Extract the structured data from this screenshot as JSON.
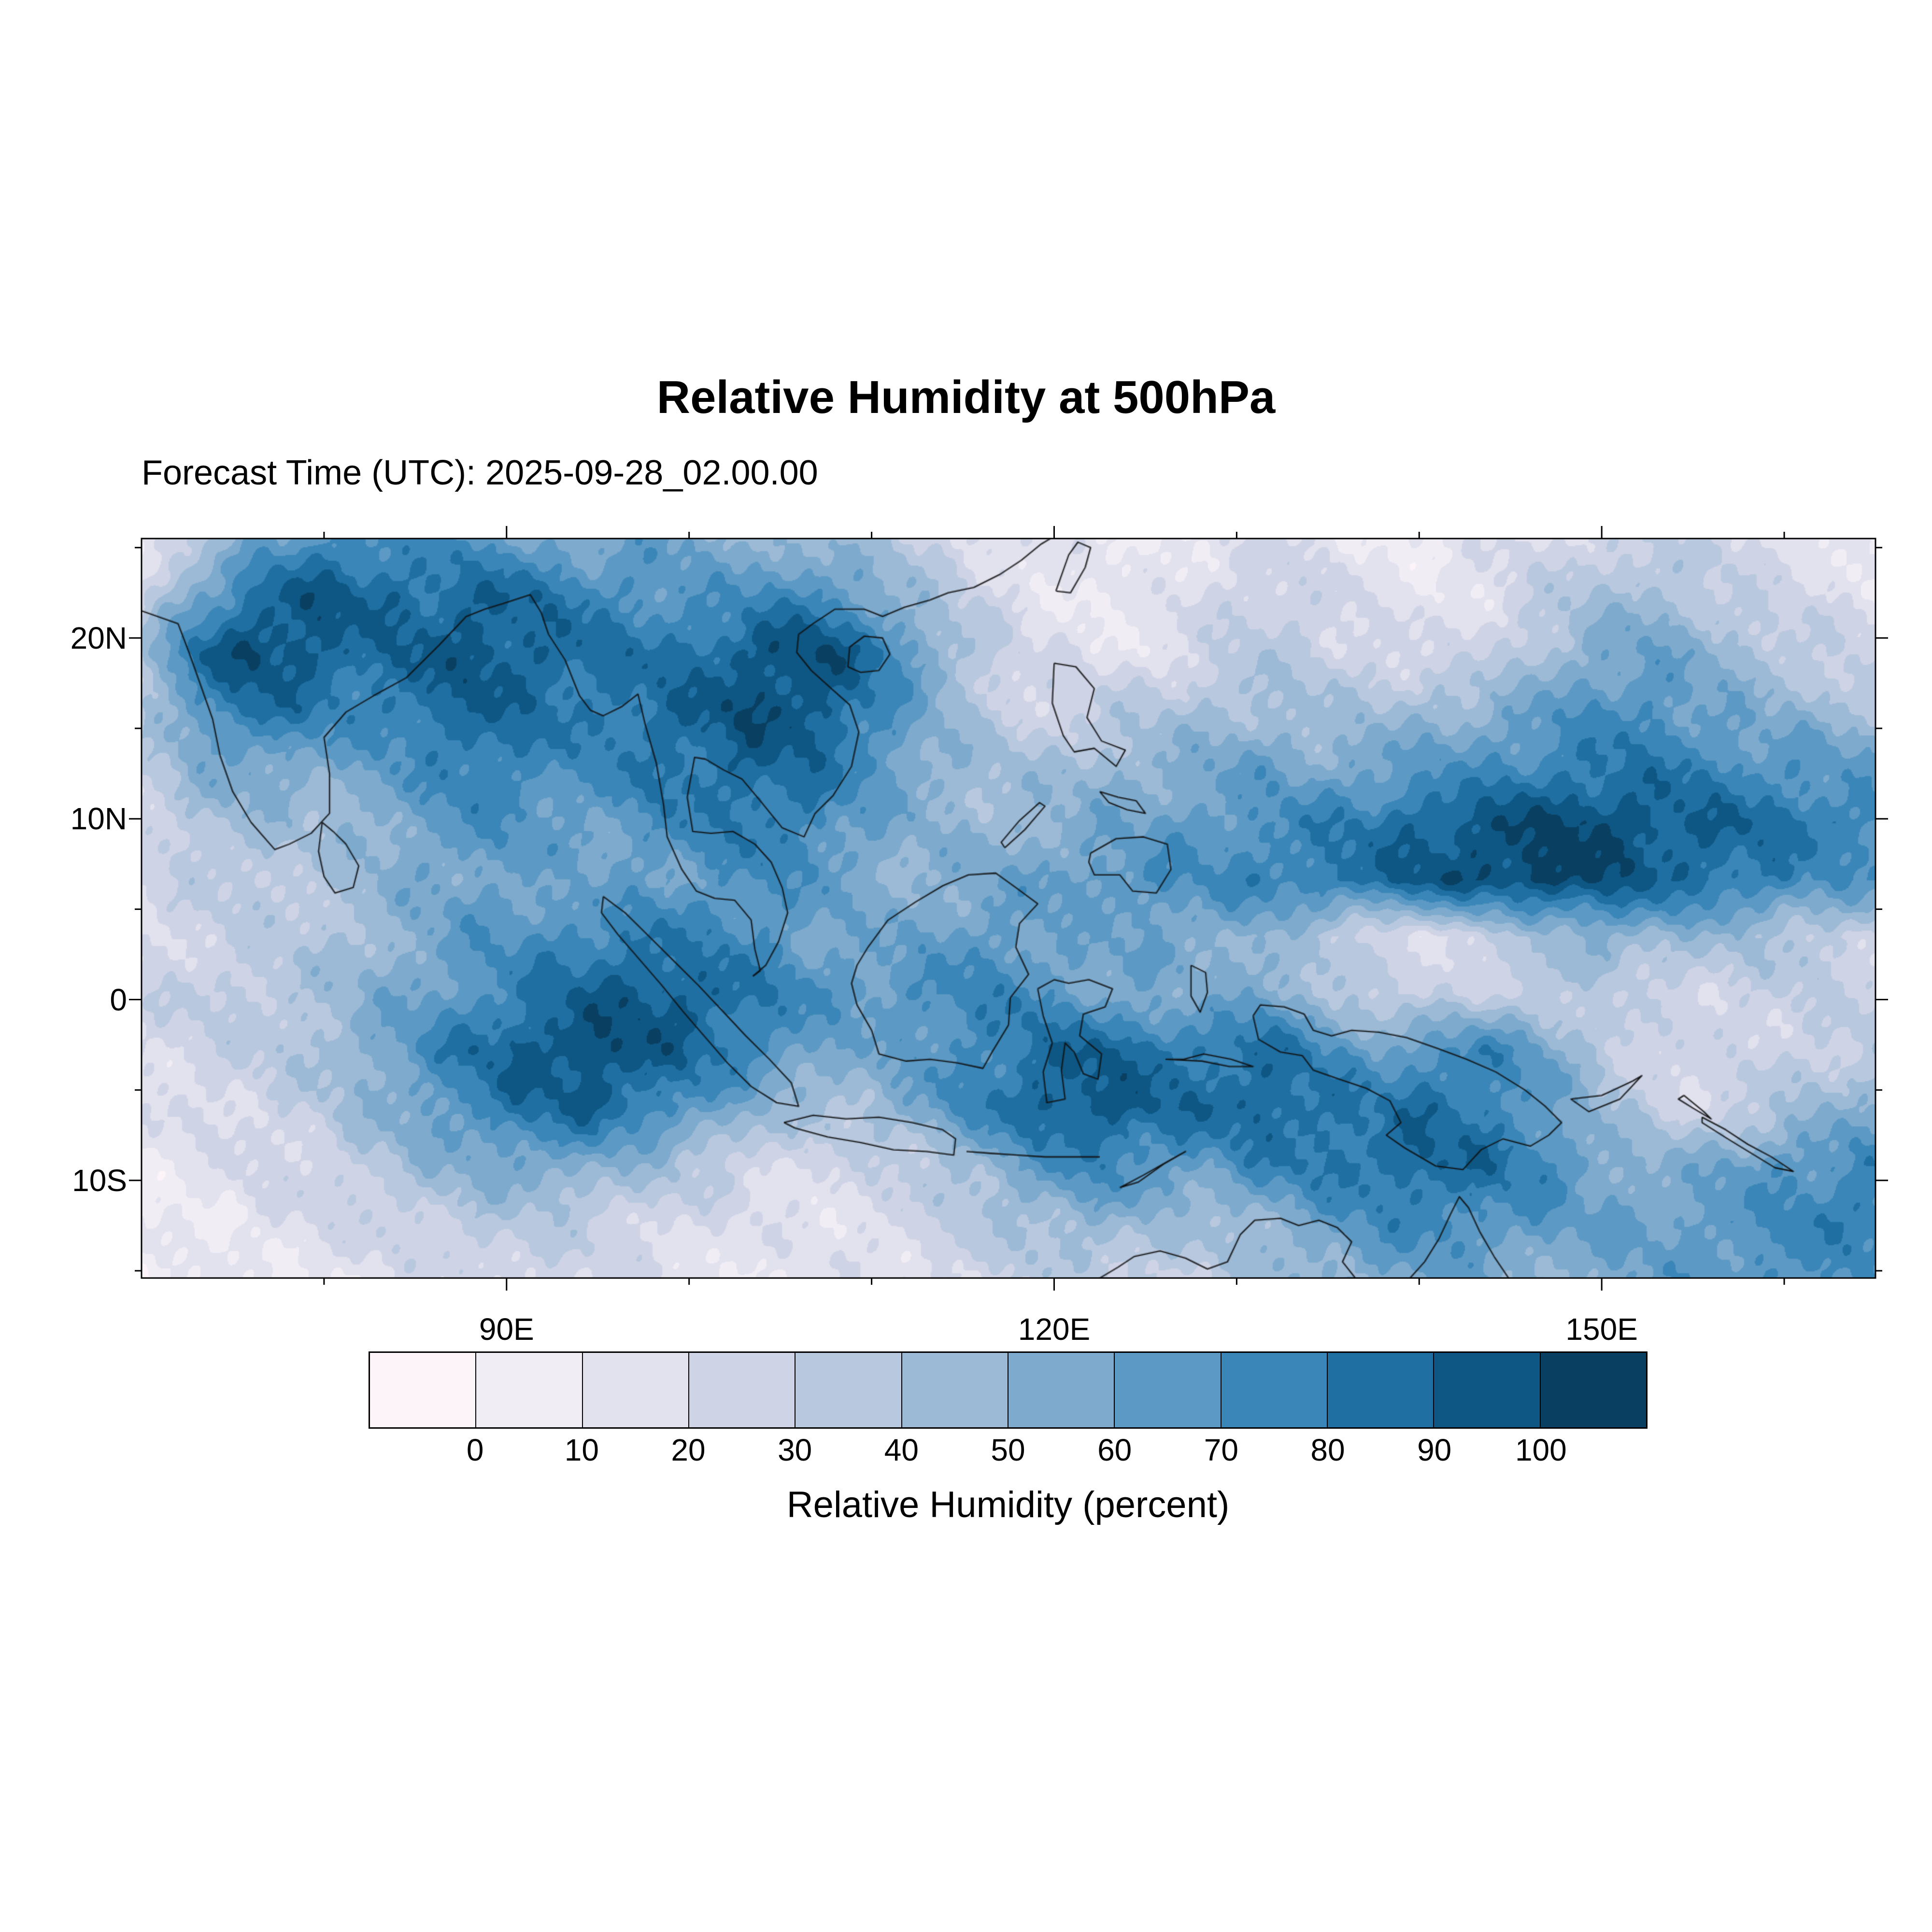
{
  "chart_data": {
    "type": "heatmap",
    "title": "Relative Humidity at 500hPa",
    "subtitle": "Forecast Time (UTC): 2025-09-28_02.00.00",
    "colorbar": {
      "title": "Relative Humidity (percent)",
      "tick_labels": [
        "0",
        "10",
        "20",
        "30",
        "40",
        "50",
        "60",
        "70",
        "80",
        "90",
        "100"
      ],
      "levels": [
        0,
        10,
        20,
        30,
        40,
        50,
        60,
        70,
        80,
        90,
        100
      ],
      "colors": [
        "#fcf4f9",
        "#f1edf5",
        "#e2e1ee",
        "#cfd3e6",
        "#b8c8de",
        "#9cbad6",
        "#7daacd",
        "#5c99c4",
        "#3a86b8",
        "#1f6fa3",
        "#0e5784",
        "#093f60"
      ]
    },
    "x_axis": {
      "range_deg_east": [
        70,
        165
      ],
      "ticks": [
        {
          "deg": 90,
          "label": "90E"
        },
        {
          "deg": 120,
          "label": "120E"
        },
        {
          "deg": 150,
          "label": "150E"
        }
      ],
      "minor_step": 10
    },
    "y_axis": {
      "range_deg_north": [
        -15.4,
        25.5
      ],
      "ticks": [
        {
          "deg": 20,
          "label": "20N"
        },
        {
          "deg": 10,
          "label": "10N"
        },
        {
          "deg": 0,
          "label": "0"
        },
        {
          "deg": -10,
          "label": "10S"
        }
      ],
      "minor_step": 5
    },
    "grid": {
      "lon_min": 70,
      "lon_max": 165,
      "lat_min": -15.4,
      "lat_max": 25.5,
      "ncols": 32,
      "nrows": 14,
      "values": [
        [
          15,
          30,
          55,
          70,
          75,
          70,
          65,
          60,
          55,
          60,
          55,
          50,
          45,
          40,
          30,
          20,
          15,
          10,
          10,
          15,
          20,
          15,
          10,
          10,
          15,
          20,
          25,
          30,
          25,
          20,
          15,
          10
        ],
        [
          25,
          60,
          85,
          95,
          90,
          85,
          90,
          85,
          75,
          70,
          65,
          70,
          75,
          60,
          40,
          25,
          15,
          10,
          12,
          20,
          30,
          25,
          15,
          12,
          18,
          30,
          40,
          45,
          35,
          25,
          20,
          15
        ],
        [
          40,
          85,
          100,
          95,
          85,
          90,
          95,
          90,
          85,
          80,
          85,
          95,
          100,
          85,
          60,
          35,
          20,
          15,
          15,
          25,
          35,
          30,
          25,
          20,
          25,
          40,
          55,
          60,
          50,
          40,
          30,
          25
        ],
        [
          35,
          70,
          85,
          80,
          75,
          85,
          90,
          85,
          80,
          85,
          90,
          100,
          95,
          80,
          55,
          35,
          25,
          30,
          35,
          40,
          45,
          40,
          40,
          45,
          50,
          60,
          70,
          70,
          60,
          50,
          45,
          40
        ],
        [
          30,
          50,
          60,
          55,
          60,
          70,
          80,
          75,
          70,
          80,
          85,
          90,
          85,
          70,
          55,
          45,
          40,
          45,
          50,
          55,
          60,
          55,
          60,
          65,
          70,
          75,
          80,
          80,
          75,
          70,
          65,
          60
        ],
        [
          25,
          40,
          45,
          40,
          50,
          60,
          70,
          65,
          60,
          70,
          75,
          80,
          75,
          60,
          50,
          45,
          50,
          55,
          60,
          65,
          70,
          75,
          80,
          90,
          95,
          100,
          100,
          95,
          90,
          85,
          80,
          75
        ],
        [
          20,
          30,
          35,
          35,
          45,
          55,
          60,
          60,
          55,
          60,
          65,
          70,
          65,
          55,
          50,
          55,
          60,
          65,
          70,
          70,
          75,
          80,
          85,
          95,
          100,
          105,
          100,
          90,
          85,
          80,
          70,
          65
        ],
        [
          20,
          25,
          30,
          35,
          45,
          55,
          65,
          70,
          75,
          80,
          75,
          70,
          60,
          55,
          60,
          65,
          60,
          55,
          60,
          55,
          50,
          35,
          25,
          20,
          25,
          40,
          55,
          50,
          45,
          40,
          35,
          30
        ],
        [
          25,
          30,
          35,
          40,
          50,
          60,
          70,
          80,
          90,
          95,
          90,
          80,
          70,
          65,
          70,
          75,
          70,
          60,
          55,
          50,
          60,
          45,
          30,
          25,
          30,
          35,
          30,
          25,
          25,
          30,
          30,
          25
        ],
        [
          20,
          25,
          30,
          40,
          55,
          70,
          85,
          95,
          100,
          95,
          85,
          75,
          60,
          55,
          65,
          75,
          85,
          90,
          85,
          80,
          85,
          75,
          60,
          70,
          75,
          60,
          40,
          25,
          20,
          25,
          30,
          35
        ],
        [
          15,
          20,
          25,
          30,
          45,
          60,
          75,
          85,
          90,
          80,
          65,
          50,
          40,
          45,
          60,
          75,
          90,
          95,
          90,
          85,
          90,
          85,
          80,
          85,
          80,
          65,
          45,
          30,
          25,
          35,
          45,
          50
        ],
        [
          10,
          15,
          20,
          25,
          35,
          45,
          55,
          60,
          55,
          45,
          35,
          25,
          20,
          25,
          35,
          50,
          65,
          75,
          70,
          65,
          75,
          80,
          85,
          90,
          85,
          75,
          60,
          50,
          55,
          65,
          70,
          75
        ],
        [
          8,
          10,
          15,
          20,
          25,
          30,
          35,
          35,
          30,
          25,
          20,
          15,
          15,
          20,
          25,
          35,
          45,
          50,
          45,
          40,
          50,
          60,
          70,
          75,
          70,
          65,
          60,
          60,
          65,
          70,
          75,
          80
        ],
        [
          5,
          8,
          10,
          12,
          15,
          20,
          25,
          25,
          22,
          18,
          15,
          12,
          12,
          15,
          20,
          25,
          30,
          35,
          30,
          30,
          40,
          50,
          55,
          60,
          55,
          50,
          55,
          60,
          65,
          70,
          70,
          65
        ]
      ]
    },
    "coastlines": [
      [
        70,
        21.5,
        72,
        20.8,
        72.6,
        19.2,
        73.2,
        17.5,
        73.9,
        15.5,
        74.3,
        13.5,
        75,
        11.5,
        76,
        9.8,
        77.3,
        8.3,
        78.1,
        8.6,
        79.3,
        9.2,
        80.3,
        10.3,
        80.3,
        12.5,
        80,
        14.5,
        81.2,
        15.9,
        82.7,
        16.8,
        84.5,
        17.8,
        86.3,
        19.6,
        87.8,
        21.2,
        88.8,
        21.6,
        89.8,
        21.9,
        91.3,
        22.4,
        91.9,
        21.4,
        92.3,
        20.2
      ],
      [
        92.3,
        20.2,
        93.2,
        18.8,
        94,
        16.8,
        94.6,
        16,
        95.3,
        15.7,
        96.3,
        16.2,
        97.2,
        16.9,
        97.6,
        15.2,
        98.2,
        13.1,
        98.6,
        10.8,
        98.8,
        9,
        99.6,
        7.2,
        100.4,
        6,
        101.4,
        5.6,
        102.5,
        5.5,
        103.4,
        4.4,
        103.6,
        2.8,
        103.9,
        1.6,
        103.5,
        1.3
      ],
      [
        103.5,
        1.3,
        104.2,
        1.9,
        104.9,
        3.2,
        105.4,
        4.8,
        105.1,
        6.2,
        104.5,
        7.6,
        103.6,
        8.6,
        102.4,
        9.3,
        101.2,
        9.2,
        100.2,
        9.3,
        99.9,
        11.2,
        100.3,
        13.4,
        100.9,
        13.3,
        101.9,
        12.7,
        102.9,
        12.2,
        103.9,
        11,
        105.1,
        9.5,
        106.3,
        9,
        106.9,
        10.3,
        107.9,
        11.3,
        108.9,
        12.9,
        109.3,
        14.8,
        108.8,
        16.3,
        107.8,
        17.2,
        106.7,
        18.2,
        105.9,
        19.2,
        106,
        20.2,
        106.8,
        20.8,
        108,
        21.6,
        109.6,
        21.6,
        110.6,
        21.2,
        111.8,
        21.7,
        113.2,
        22.1,
        114.2,
        22.5,
        115.6,
        22.8,
        117,
        23.5,
        118.2,
        24.3,
        119.3,
        25.2,
        119.8,
        25.5
      ],
      [
        108.7,
        18.4,
        108.8,
        19.5,
        109.6,
        20.1,
        110.6,
        20,
        111,
        19.1,
        110.4,
        18.2,
        109.4,
        18.1,
        108.7,
        18.4
      ],
      [
        120.1,
        22.6,
        120.8,
        24.6,
        121.3,
        25.3,
        122,
        25,
        121.7,
        23.9,
        120.9,
        22.5,
        120.1,
        22.6
      ],
      [
        79.9,
        9.8,
        80.5,
        9.3,
        81.2,
        8.6,
        81.9,
        7.4,
        81.6,
        6.2,
        80.6,
        5.9,
        80,
        6.8,
        79.7,
        8.2,
        79.9,
        9.8
      ],
      [
        95.3,
        5.7,
        96.5,
        4.8,
        97.9,
        3.4,
        99.2,
        2.1,
        100.5,
        0.8,
        101.8,
        -0.6,
        103.1,
        -2,
        104.4,
        -3.3,
        105.6,
        -4.6,
        106,
        -5.9,
        104.8,
        -5.7,
        103.4,
        -4.8,
        102.1,
        -3.5,
        100.9,
        -2.1,
        99.7,
        -0.7,
        98.5,
        0.8,
        97.3,
        2.2,
        96.1,
        3.6,
        95.2,
        4.8,
        95.3,
        5.7
      ],
      [
        105.2,
        -6.8,
        106.8,
        -6.4,
        108.6,
        -6.6,
        110.4,
        -6.5,
        112.2,
        -6.8,
        113.9,
        -7.2,
        114.6,
        -7.7,
        114.5,
        -8.6,
        113,
        -8.4,
        111.2,
        -8.3,
        109.4,
        -7.9,
        107.6,
        -7.6,
        105.8,
        -7.1,
        105.2,
        -6.8
      ],
      [
        115.2,
        -8.4,
        116.5,
        -8.5,
        118,
        -8.6,
        119.5,
        -8.7,
        121,
        -8.7,
        122.5,
        -8.7
      ],
      [
        123.6,
        -10.4,
        124.9,
        -9.7,
        126.3,
        -8.9,
        127.2,
        -8.4,
        126,
        -9.1,
        124.6,
        -10.1,
        123.6,
        -10.4
      ],
      [
        109.2,
        1.9,
        109.8,
        2.9,
        110.9,
        4.4,
        112.4,
        5.4,
        113.9,
        6.3,
        115.3,
        6.9,
        116.8,
        7,
        117.9,
        6.2,
        119.1,
        5.3,
        118.1,
        4.2,
        117.9,
        2.9,
        118.6,
        1.4,
        117.6,
        0.1,
        117.5,
        -1.4,
        116.6,
        -2.9,
        116.1,
        -3.8,
        114.7,
        -3.5,
        113.2,
        -3.3,
        111.9,
        -3.4,
        110.4,
        -3,
        110,
        -1.7,
        109.2,
        -0.3,
        108.9,
        0.9,
        109.2,
        1.9
      ],
      [
        119.1,
        0.6,
        120,
        1.1,
        120.8,
        0.9,
        121.9,
        1.1,
        123.2,
        0.6,
        122.8,
        -0.4,
        121.6,
        -0.8,
        121.4,
        -2,
        122.6,
        -3,
        122.4,
        -4.4,
        121.6,
        -4.1,
        121.1,
        -2.9,
        120.6,
        -2.4,
        120.4,
        -3.9,
        120.6,
        -5.5,
        119.6,
        -5.7,
        119.4,
        -4,
        119.9,
        -2.4,
        119.4,
        -0.9,
        119.1,
        0.6
      ],
      [
        120,
        18.6,
        121.2,
        18.4,
        122.2,
        17.2,
        121.8,
        15.6,
        122.6,
        14.3,
        123.9,
        13.8,
        123.4,
        12.9,
        122.2,
        13.9,
        121.1,
        13.7,
        120.5,
        14.6,
        119.9,
        16.4,
        120,
        18.6
      ],
      [
        122,
        8.1,
        123.4,
        8.9,
        124.9,
        9,
        126.2,
        8.6,
        126.4,
        7.2,
        125.6,
        5.9,
        124.3,
        6,
        123.6,
        6.9,
        122.2,
        6.9,
        121.9,
        7.6,
        122,
        8.1
      ],
      [
        122.5,
        11.5,
        123.5,
        11.2,
        124.5,
        11,
        125,
        10.3,
        124,
        10.5,
        123,
        10.9,
        122.5,
        11.5
      ],
      [
        117.3,
        8.4,
        118.4,
        9.4,
        119.5,
        10.7,
        119.2,
        10.9,
        118.1,
        9.9,
        117.1,
        8.7,
        117.3,
        8.4
      ],
      [
        127.5,
        1.9,
        128.3,
        1.5,
        128.4,
        0.4,
        128,
        -0.7,
        127.5,
        0.2,
        127.5,
        1.9
      ],
      [
        126.1,
        -3.3,
        127.1,
        -3.3,
        128.2,
        -3,
        129.7,
        -3.3,
        130.9,
        -3.7,
        129.6,
        -3.7,
        128.1,
        -3.4,
        126.1,
        -3.3
      ],
      [
        130.9,
        -0.9,
        131.3,
        -0.3,
        132.6,
        -0.4,
        133.7,
        -0.8,
        134.2,
        -1.7,
        135.2,
        -2,
        136.3,
        -1.7,
        137.8,
        -1.8,
        139.3,
        -2.1,
        141,
        -2.7,
        142.6,
        -3.3,
        144.2,
        -4,
        145.8,
        -5,
        146.9,
        -5.9,
        147.8,
        -6.8,
        147.1,
        -7.5,
        146.1,
        -8.1,
        144.6,
        -7.7,
        143.4,
        -8.3,
        142.4,
        -9.4,
        140.9,
        -9.2,
        139.2,
        -8.2,
        138.2,
        -7.5,
        139,
        -6.8,
        138.4,
        -5.6,
        137.1,
        -4.9,
        135.6,
        -4.4,
        134.2,
        -3.9,
        133.6,
        -3.1,
        132.4,
        -2.9,
        131.2,
        -2.2,
        130.9,
        -0.9
      ],
      [
        148.3,
        -5.5,
        150,
        -5.3,
        151.7,
        -4.5,
        152.2,
        -4.2,
        151,
        -5.5,
        149.3,
        -6.2,
        148.3,
        -5.5
      ],
      [
        154.5,
        -5.3,
        155.6,
        -6.2,
        156,
        -6.6,
        155,
        -6,
        154.2,
        -5.5,
        154.5,
        -5.3
      ],
      [
        155.5,
        -6.5,
        156.8,
        -7.2,
        158,
        -8,
        159.3,
        -8.7,
        160.5,
        -9.5,
        159.5,
        -9.3,
        158.2,
        -8.5,
        156.9,
        -7.7,
        155.5,
        -6.8,
        155.5,
        -6.5
      ],
      [
        122.5,
        -15.4,
        123.5,
        -14.8,
        124.4,
        -14.2,
        125.8,
        -13.9,
        127.2,
        -14.3,
        128.4,
        -14.9,
        129.5,
        -14.5,
        130.2,
        -13,
        131,
        -12.2,
        132.4,
        -12.1,
        133.4,
        -12.5,
        134.5,
        -12.2,
        135.5,
        -12.6,
        136.3,
        -13.4,
        135.8,
        -14.5,
        136.5,
        -15.4
      ],
      [
        139.5,
        -15.4,
        140.3,
        -14.5,
        141.1,
        -13.2,
        141.7,
        -11.9,
        142.2,
        -10.9,
        142.7,
        -11.5,
        143.3,
        -12.8,
        144.1,
        -14.2,
        144.9,
        -15.4
      ]
    ]
  }
}
